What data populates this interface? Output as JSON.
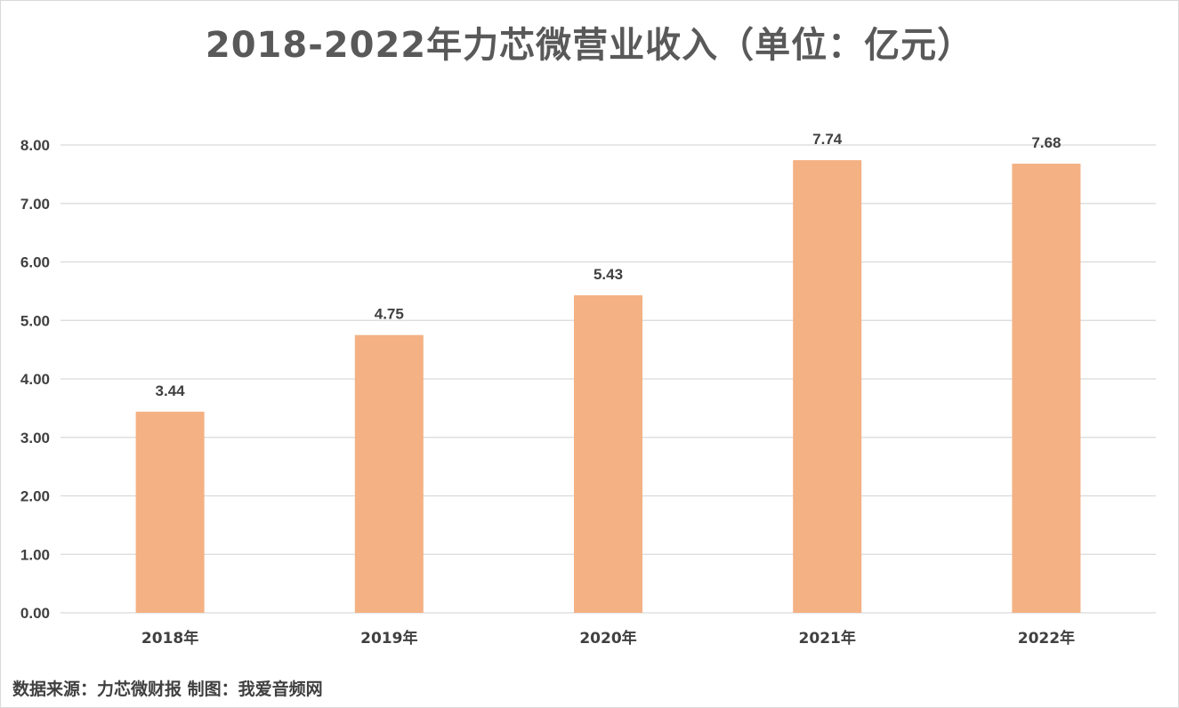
{
  "chart_data": {
    "type": "bar",
    "title": "2018-2022年力芯微营业收入（单位：亿元）",
    "categories": [
      "2018年",
      "2019年",
      "2020年",
      "2021年",
      "2022年"
    ],
    "values": [
      3.44,
      4.75,
      5.43,
      7.74,
      7.68
    ],
    "data_labels": [
      "3.44",
      "4.75",
      "5.43",
      "7.74",
      "7.68"
    ],
    "ylim": [
      0,
      8
    ],
    "yticks": [
      "0.00",
      "1.00",
      "2.00",
      "3.00",
      "4.00",
      "5.00",
      "6.00",
      "7.00",
      "8.00"
    ],
    "grid": true,
    "legend": "none",
    "bar_color": "#f4b183",
    "gridline_color": "#d9d9d9",
    "text_color": "#404040"
  },
  "footer": {
    "source": "数据来源：力芯微财报  制图：我爱音频网"
  }
}
